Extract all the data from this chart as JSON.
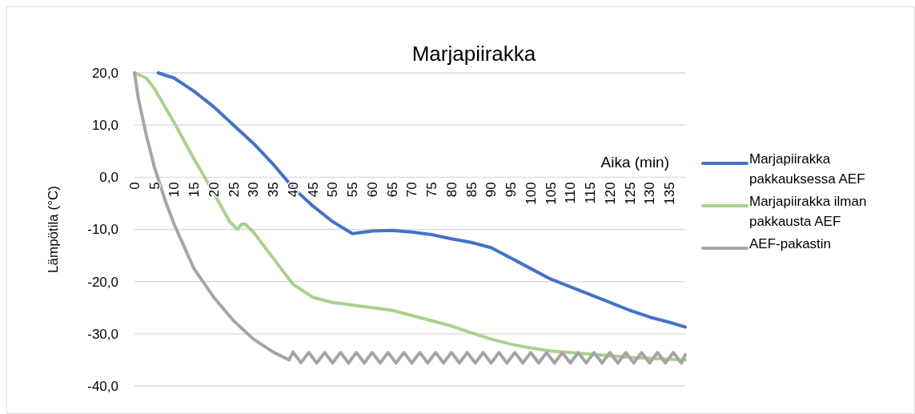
{
  "chart_data": {
    "type": "line",
    "title": "Marjapiirakka",
    "xlabel": "Aika (min)",
    "ylabel": "Lämpötila (°C)",
    "xlim": [
      0,
      139
    ],
    "xticks": [
      0,
      5,
      10,
      15,
      20,
      25,
      30,
      35,
      40,
      45,
      50,
      55,
      60,
      65,
      70,
      75,
      80,
      85,
      90,
      95,
      100,
      105,
      110,
      115,
      120,
      125,
      130,
      135
    ],
    "ylim": [
      -40,
      20
    ],
    "yticks": [
      {
        "value": -40,
        "label": "-40,0"
      },
      {
        "value": -30,
        "label": "-30,0"
      },
      {
        "value": -20,
        "label": "-20,0"
      },
      {
        "value": -10,
        "label": "-10,0"
      },
      {
        "value": 0,
        "label": "0,0"
      },
      {
        "value": 10,
        "label": "10,0"
      },
      {
        "value": 20,
        "label": "20,0"
      }
    ],
    "grid": "y",
    "legend": "right",
    "marker": "none",
    "line_style": "solid",
    "series": [
      {
        "name": "Marjapiirakka pakkauksessa AEF",
        "color": "#4472c4",
        "x": [
          6,
          10,
          15,
          20,
          25,
          30,
          35,
          40,
          45,
          50,
          55,
          60,
          65,
          70,
          75,
          80,
          85,
          90,
          95,
          100,
          105,
          110,
          115,
          120,
          125,
          130,
          135,
          139
        ],
        "values": [
          20,
          19,
          16.5,
          13.5,
          10,
          6.5,
          2.5,
          -2,
          -5.5,
          -8.5,
          -10.8,
          -10.3,
          -10.2,
          -10.5,
          -11,
          -11.8,
          -12.5,
          -13.5,
          -15.5,
          -17.5,
          -19.5,
          -21,
          -22.5,
          -24,
          -25.5,
          -26.8,
          -27.8,
          -28.7
        ]
      },
      {
        "name": "Marjapiirakka ilman pakkausta AEF",
        "color": "#a9d18e",
        "x": [
          0,
          3,
          5,
          10,
          15,
          20,
          24,
          26,
          27,
          28,
          30,
          35,
          40,
          45,
          50,
          55,
          60,
          65,
          70,
          75,
          80,
          85,
          90,
          95,
          100,
          105,
          110,
          115,
          120,
          125,
          130,
          139
        ],
        "values": [
          20,
          19,
          17,
          10.5,
          3.5,
          -3,
          -8.5,
          -10,
          -9,
          -9,
          -10.5,
          -15.5,
          -20.5,
          -23,
          -24,
          -24.5,
          -25,
          -25.5,
          -26.5,
          -27.5,
          -28.5,
          -29.8,
          -31,
          -32,
          -32.7,
          -33.3,
          -33.6,
          -33.9,
          -34.2,
          -34.5,
          -34.7,
          -35
        ]
      },
      {
        "name": "AEF-pakastin",
        "color": "#a5a5a5",
        "x": [
          0,
          1,
          3,
          5,
          8,
          10,
          15,
          20,
          25,
          30,
          35,
          39,
          40,
          42,
          44,
          46,
          48,
          50,
          52,
          54,
          56,
          58,
          60,
          62,
          64,
          66,
          68,
          70,
          72,
          74,
          76,
          78,
          80,
          82,
          84,
          86,
          88,
          90,
          92,
          94,
          96,
          98,
          100,
          102,
          104,
          106,
          108,
          110,
          112,
          114,
          116,
          118,
          120,
          122,
          124,
          126,
          128,
          130,
          132,
          134,
          136,
          138,
          139
        ],
        "values": [
          20,
          15,
          8,
          2,
          -5,
          -9,
          -17.5,
          -23,
          -27.5,
          -31,
          -33.5,
          -35,
          -33.5,
          -35.5,
          -33.6,
          -35.6,
          -33.6,
          -35.6,
          -33.6,
          -35.6,
          -33.6,
          -35.6,
          -33.6,
          -35.6,
          -33.6,
          -35.6,
          -33.6,
          -35.6,
          -33.6,
          -35.6,
          -33.6,
          -35.6,
          -33.6,
          -35.6,
          -33.6,
          -35.6,
          -33.6,
          -35.6,
          -33.6,
          -35.6,
          -33.6,
          -35.6,
          -33.6,
          -35.6,
          -33.6,
          -35.6,
          -33.6,
          -35.6,
          -33.6,
          -35.6,
          -33.6,
          -35.6,
          -33.6,
          -35.6,
          -33.6,
          -35.6,
          -33.6,
          -35.6,
          -33.6,
          -35.6,
          -33.6,
          -35.6,
          -34
        ]
      }
    ]
  }
}
